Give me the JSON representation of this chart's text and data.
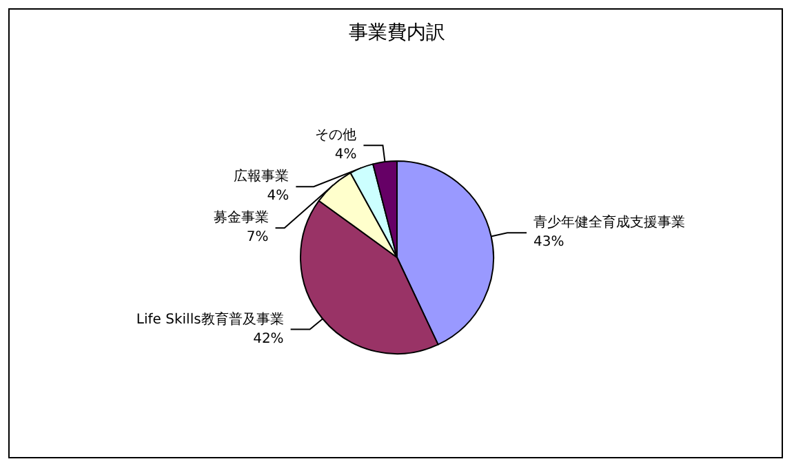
{
  "chart_data": {
    "type": "pie",
    "title": "事業費内訳",
    "categories": [
      "青少年健全育成支援事業",
      "Life Skills教育普及事業",
      "募金事業",
      "広報事業",
      "その他"
    ],
    "values": [
      43,
      42,
      7,
      4,
      4
    ],
    "colors": [
      "#9999ff",
      "#993366",
      "#ffffcc",
      "#ccffff",
      "#660066"
    ],
    "value_labels": [
      "43%",
      "42%",
      "7%",
      "4%",
      "4%"
    ]
  }
}
